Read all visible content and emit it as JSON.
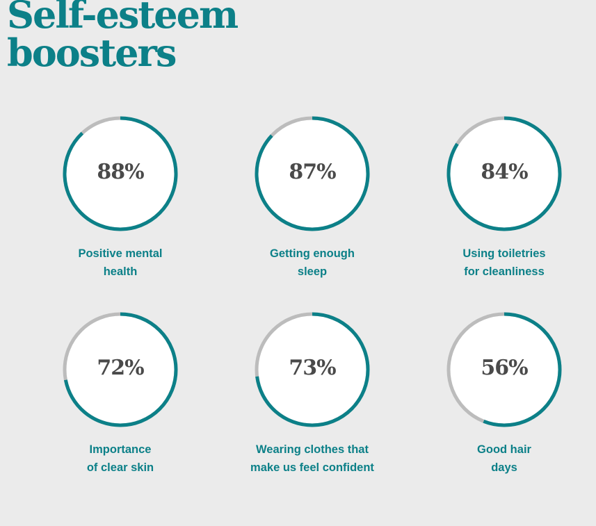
{
  "title_line1": "Self-esteem",
  "title_line2": "boosters",
  "colors": {
    "accent": "#0c8088",
    "track": "#bcbcbc",
    "background": "#ebebeb",
    "value_text": "#4a4a4a"
  },
  "chart_data": {
    "type": "donut-grid",
    "title": "Self-esteem boosters",
    "items": [
      {
        "label_lines": [
          "Positive mental",
          "health"
        ],
        "value": 88,
        "display": "88%"
      },
      {
        "label_lines": [
          "Getting enough",
          "sleep"
        ],
        "value": 87,
        "display": "87%"
      },
      {
        "label_lines": [
          "Using toiletries",
          "for cleanliness"
        ],
        "value": 84,
        "display": "84%"
      },
      {
        "label_lines": [
          "Importance",
          "of clear skin"
        ],
        "value": 72,
        "display": "72%"
      },
      {
        "label_lines": [
          "Wearing clothes that",
          "make us feel confident"
        ],
        "value": 73,
        "display": "73%"
      },
      {
        "label_lines": [
          "Good hair",
          "days"
        ],
        "value": 56,
        "display": "56%"
      }
    ]
  }
}
